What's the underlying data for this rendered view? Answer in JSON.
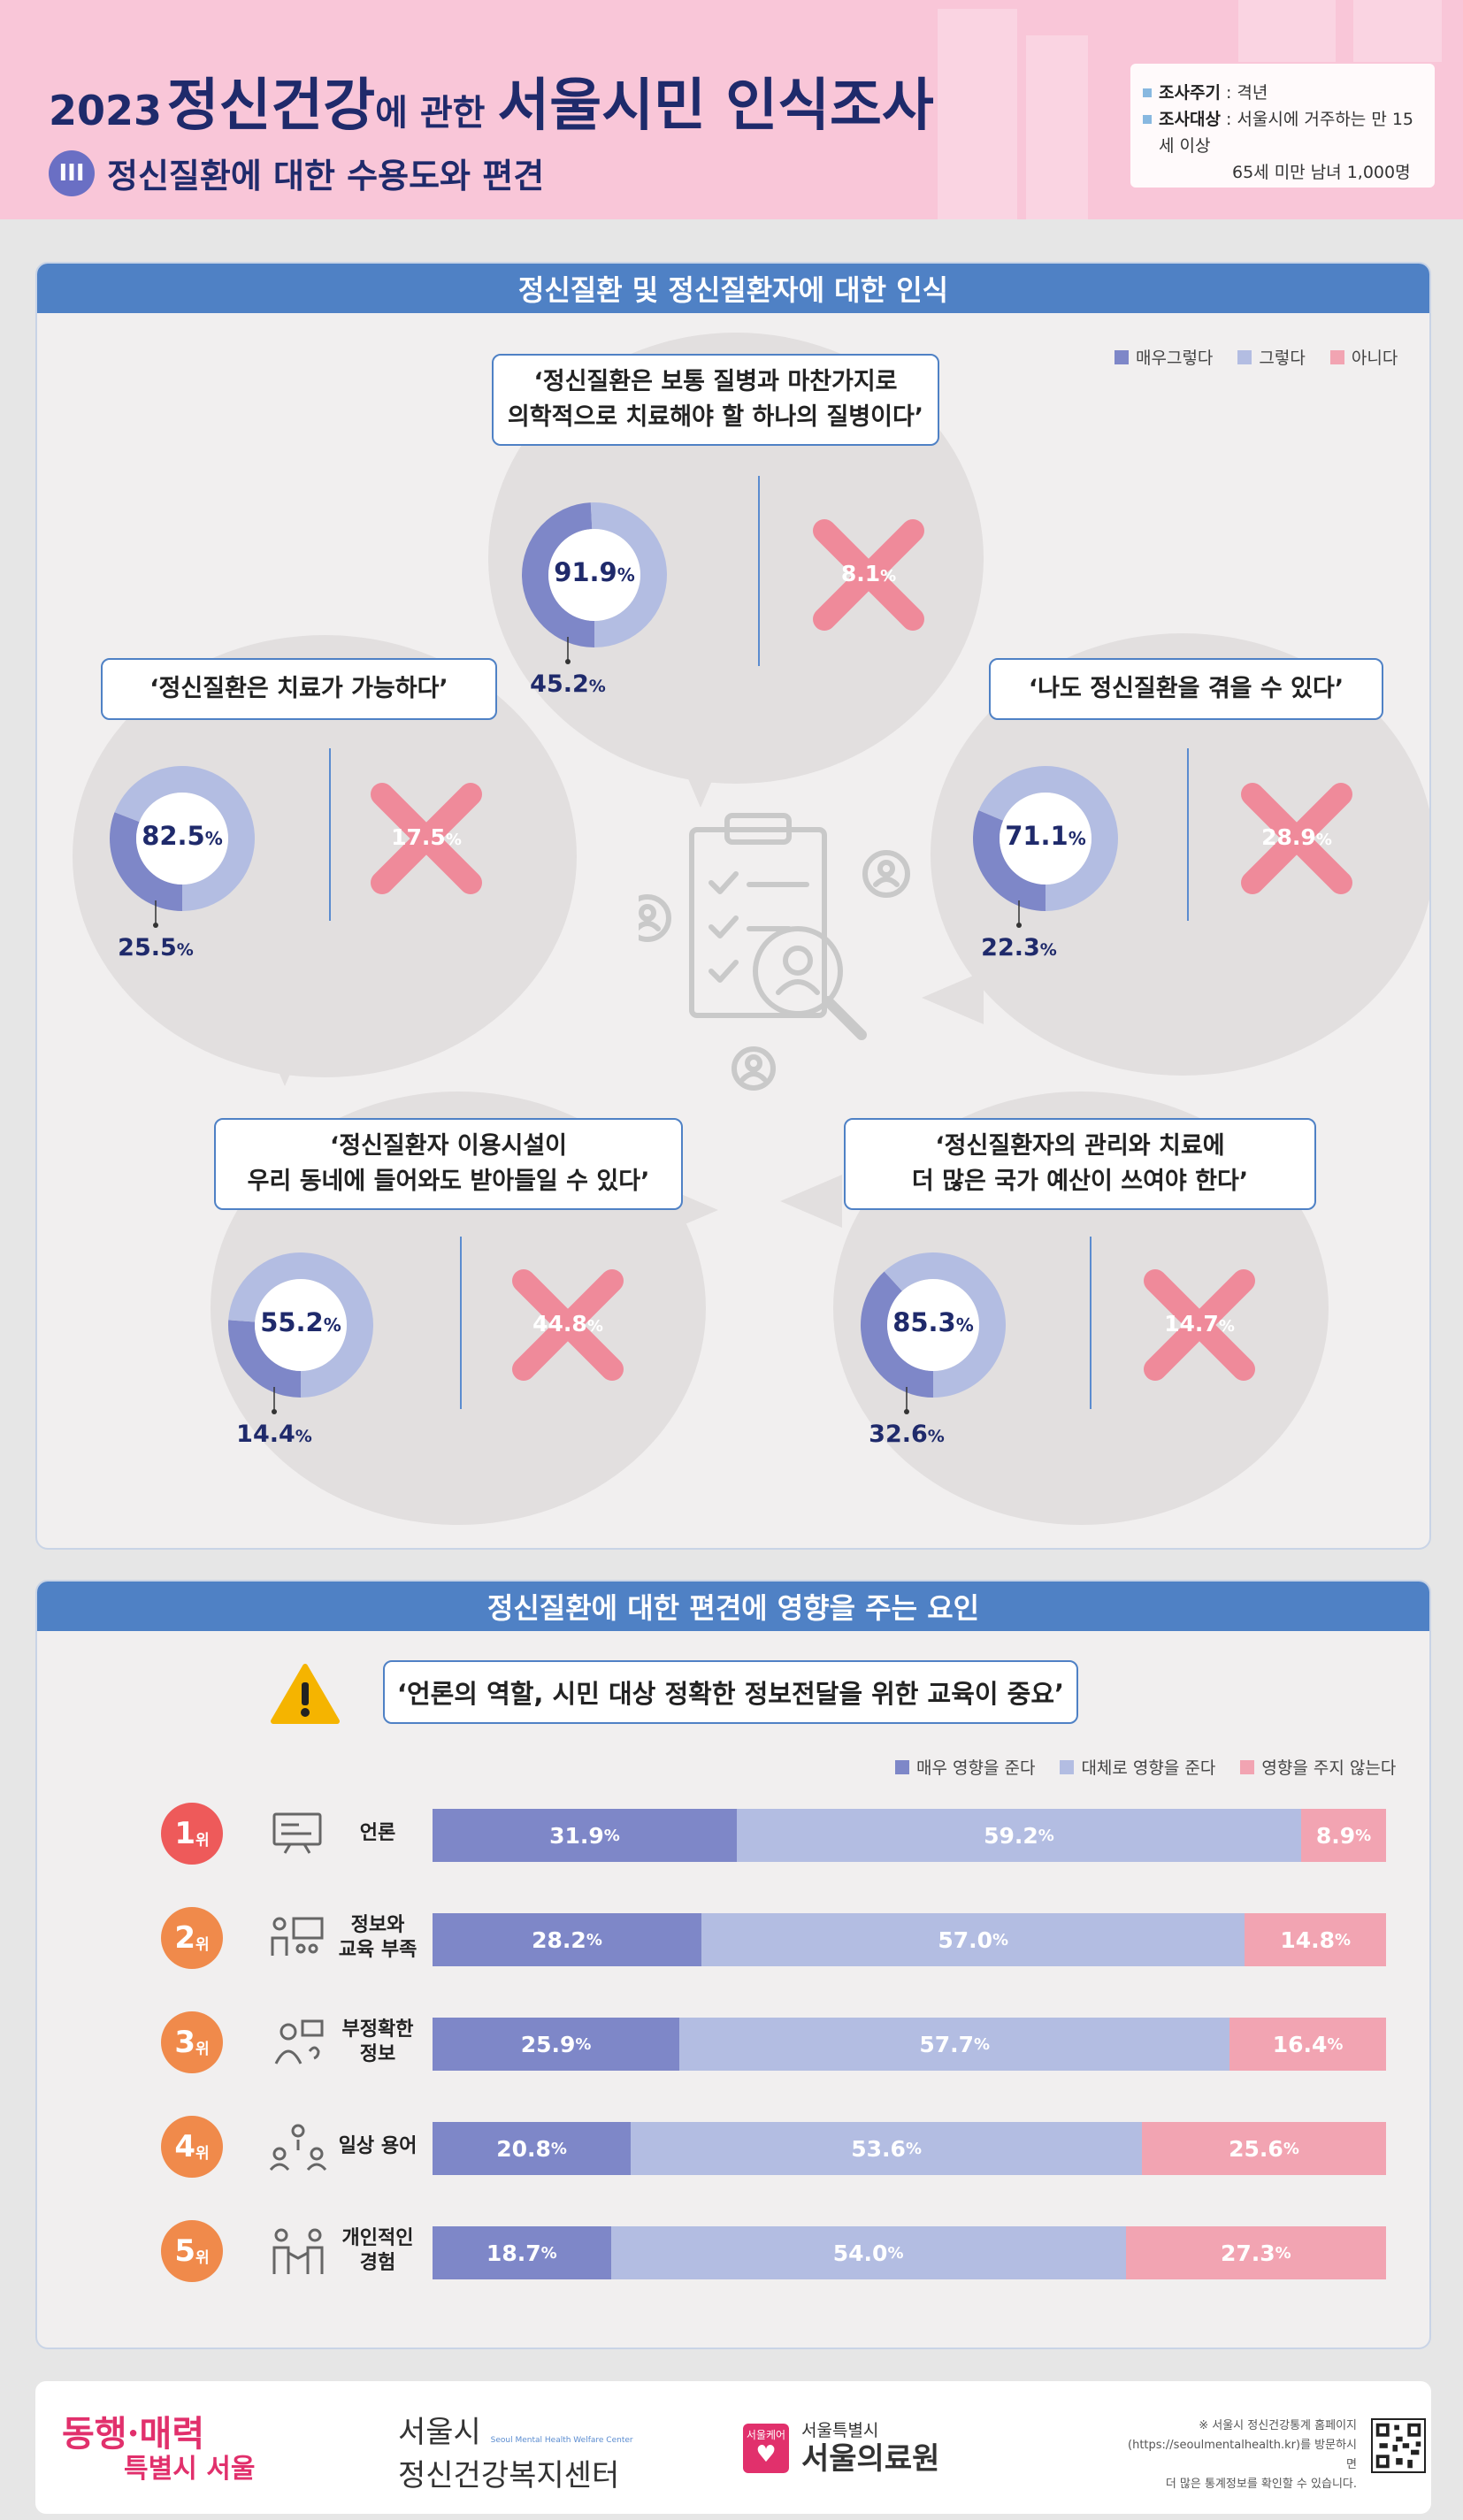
{
  "header": {
    "title_year": "2023",
    "title_a": "정신건강",
    "title_b": "에 관한 ",
    "title_c": "서울시민 인식조사",
    "section_num": "III",
    "subtitle": "정신질환에 대한 수용도와 편견",
    "info": {
      "cycle_label": "조사주기",
      "cycle_value": " : 격년",
      "target_label": "조사대상",
      "target_value": " : 서울시에 거주하는 만 15세 이상",
      "target_value2": "65세 미만 남녀 1,000명"
    }
  },
  "section1": {
    "title": "정신질환 및 정신질환자에 대한 인식",
    "legend": [
      "매우그렇다",
      "그렇다",
      "아니다"
    ]
  },
  "section2": {
    "title": "정신질환에 대한 편견에 영향을 주는 요인",
    "quote": "‘언론의 역할, 시민 대상 정확한 정보전달을 위한 교육이 중요’",
    "legend": [
      "매우 영향을 준다",
      "대체로 영향을 준다",
      "영향을 주지 않는다"
    ]
  },
  "colors": {
    "very": "#7e87c8",
    "agree": "#b3bde2",
    "no": "#f2a4b2",
    "x": "#ef8a9a",
    "rank_red": "#ee5a5a",
    "rank_orange": "#f08a4b"
  },
  "chart_data": [
    {
      "type": "pie",
      "title": "정신질환 및 정신질환자에 대한 인식",
      "legend": [
        "매우그렇다",
        "그렇다",
        "아니다"
      ],
      "items": [
        {
          "quote": [
            "‘정신질환은 보통 질병과 마찬가지로",
            "의학적으로 치료해야 할 하나의 질병이다’"
          ],
          "total": 91.9,
          "very": 45.2,
          "no": 8.1
        },
        {
          "quote": [
            "‘정신질환은 치료가 가능하다’"
          ],
          "total": 82.5,
          "very": 25.5,
          "no": 17.5
        },
        {
          "quote": [
            "‘나도 정신질환을 겪을 수 있다’"
          ],
          "total": 71.1,
          "very": 22.3,
          "no": 28.9
        },
        {
          "quote": [
            "‘정신질환자 이용시설이",
            "우리 동네에 들어와도 받아들일 수 있다’"
          ],
          "total": 55.2,
          "very": 14.4,
          "no": 44.8
        },
        {
          "quote": [
            "‘정신질환자의 관리와 치료에",
            "더 많은 국가 예산이 쓰여야 한다’"
          ],
          "total": 85.3,
          "very": 32.6,
          "no": 14.7
        }
      ]
    },
    {
      "type": "bar",
      "title": "정신질환에 대한 편견에 영향을 주는 요인",
      "series_names": [
        "매우 영향을 준다",
        "대체로 영향을 준다",
        "영향을 주지 않는다"
      ],
      "rows": [
        {
          "rank": "1",
          "rank_suffix": "위",
          "label": [
            "언론"
          ],
          "values": [
            31.9,
            59.2,
            8.9
          ]
        },
        {
          "rank": "2",
          "rank_suffix": "위",
          "label": [
            "정보와",
            "교육 부족"
          ],
          "values": [
            28.2,
            57.0,
            14.8
          ]
        },
        {
          "rank": "3",
          "rank_suffix": "위",
          "label": [
            "부정확한",
            "정보"
          ],
          "values": [
            25.9,
            57.7,
            16.4
          ]
        },
        {
          "rank": "4",
          "rank_suffix": "위",
          "label": [
            "일상 용어"
          ],
          "values": [
            20.8,
            53.6,
            25.6
          ]
        },
        {
          "rank": "5",
          "rank_suffix": "위",
          "label": [
            "개인적인",
            "경험"
          ],
          "values": [
            18.7,
            54.0,
            27.3
          ]
        }
      ]
    }
  ],
  "footer": {
    "logo1_a": "동행·매력",
    "logo1_b": "특별시 서울",
    "logo2_a": "서울시",
    "logo2_tiny": "Seoul Mental Health Welfare Center",
    "logo2_b": "정신건강복지센터",
    "logo3_box": "서울케어",
    "logo3_a": "서울특별시",
    "logo3_b": "서울의료원",
    "note": [
      "※ 서울시 정신건강통계 홈페이지",
      "(https://seoulmentalhealth.kr)를 방문하시면",
      "더 많은 통계정보를 확인할 수 있습니다."
    ]
  }
}
